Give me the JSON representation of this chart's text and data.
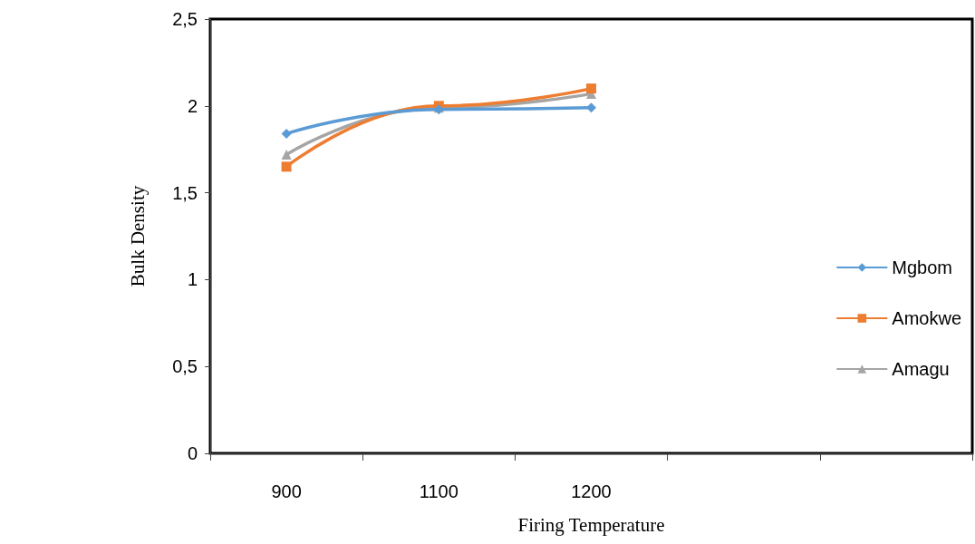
{
  "chart_data": {
    "type": "line",
    "xlabel": "Firing Temperature",
    "ylabel": "Bulk Density",
    "categories": [
      "900",
      "1100",
      "1200",
      null,
      null
    ],
    "series": [
      {
        "name": "Mgbom",
        "color": "#5b9bd5",
        "marker": "diamond",
        "values": [
          1.84,
          1.98,
          1.99,
          null,
          null
        ]
      },
      {
        "name": "Amokwe",
        "color": "#ed7d31",
        "marker": "square",
        "values": [
          1.65,
          2.0,
          2.1,
          null,
          null
        ]
      },
      {
        "name": "Amagu",
        "color": "#a5a5a5",
        "marker": "triangle",
        "values": [
          1.72,
          1.99,
          2.07,
          null,
          null
        ]
      }
    ],
    "ylim": [
      0,
      2.5
    ],
    "yticks": [
      0,
      {
        "value": 0.5,
        "label": "0,5"
      },
      1,
      {
        "value": 1.5,
        "label": "1,5"
      },
      2,
      {
        "value": 2.5,
        "label": "2,5"
      }
    ],
    "grid": false,
    "legend": "right"
  }
}
